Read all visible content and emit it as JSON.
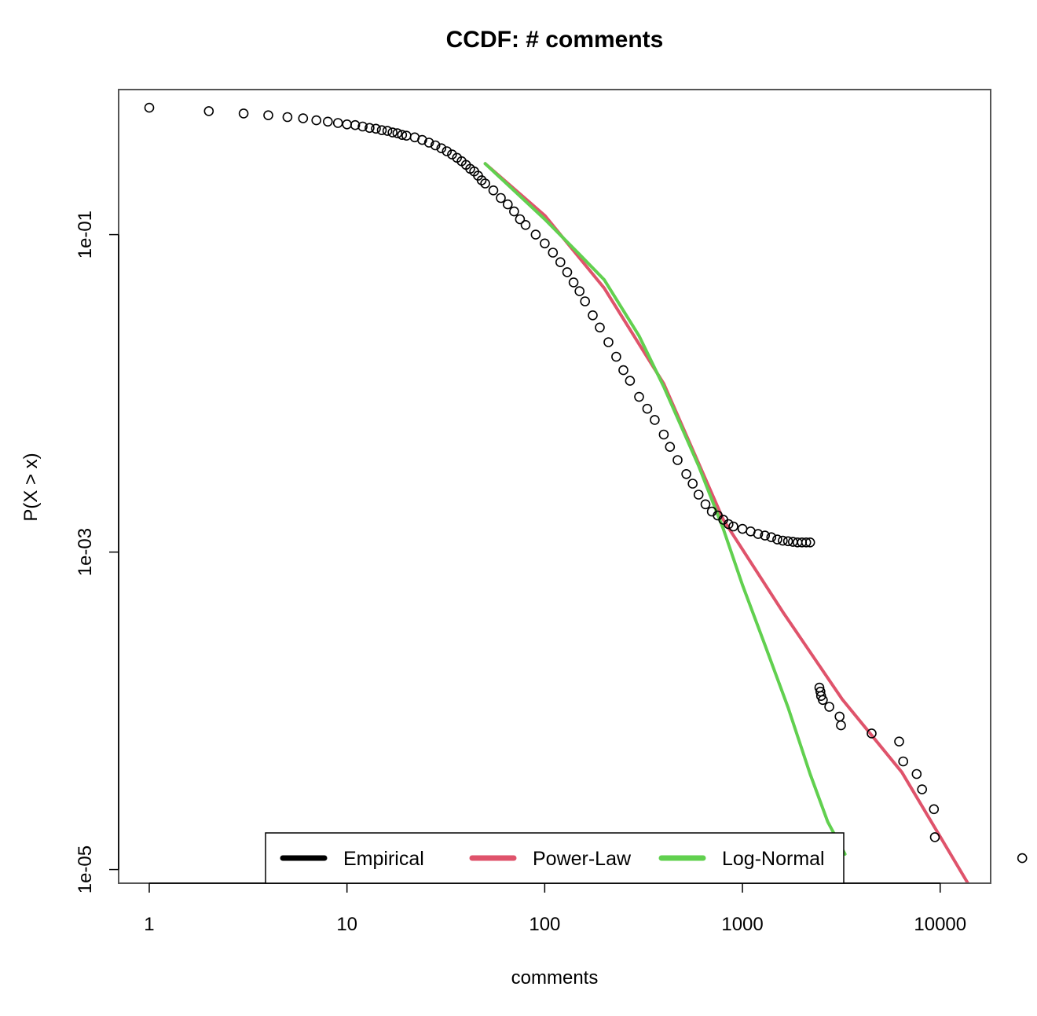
{
  "chart_data": {
    "type": "scatter",
    "title": "CCDF: # comments",
    "xlabel": "comments",
    "ylabel": "P(X > x)",
    "x_scale": "log",
    "y_scale": "log",
    "xlim": [
      0.7,
      18000
    ],
    "ylim": [
      8.2e-06,
      0.82
    ],
    "x_ticks": [
      {
        "value": 1,
        "label": "1"
      },
      {
        "value": 10,
        "label": "10"
      },
      {
        "value": 100,
        "label": "100"
      },
      {
        "value": 1000,
        "label": "1000"
      },
      {
        "value": 10000,
        "label": "10000"
      }
    ],
    "y_ticks": [
      {
        "value": 0.1,
        "label": "1e-01"
      },
      {
        "value": 0.001,
        "label": "1e-03"
      },
      {
        "value": 1e-05,
        "label": "1e-05"
      }
    ],
    "legend": {
      "position": "bottom-center",
      "entries": [
        {
          "label": "Empirical",
          "color": "#000000"
        },
        {
          "label": "Power-Law",
          "color": "#DF536B"
        },
        {
          "label": "Log-Normal",
          "color": "#61D04F"
        }
      ]
    },
    "series": [
      {
        "name": "Empirical",
        "style": "points",
        "color": "#000000",
        "points": [
          [
            1,
            0.63
          ],
          [
            2,
            0.6
          ],
          [
            3,
            0.58
          ],
          [
            4,
            0.565
          ],
          [
            5,
            0.55
          ],
          [
            6,
            0.54
          ],
          [
            7,
            0.525
          ],
          [
            8,
            0.515
          ],
          [
            9,
            0.505
          ],
          [
            10,
            0.495
          ],
          [
            11,
            0.49
          ],
          [
            12,
            0.48
          ],
          [
            13,
            0.47
          ],
          [
            14,
            0.465
          ],
          [
            15,
            0.455
          ],
          [
            16,
            0.45
          ],
          [
            17,
            0.44
          ],
          [
            18,
            0.435
          ],
          [
            19,
            0.425
          ],
          [
            20,
            0.42
          ],
          [
            22,
            0.41
          ],
          [
            24,
            0.395
          ],
          [
            26,
            0.38
          ],
          [
            28,
            0.365
          ],
          [
            30,
            0.35
          ],
          [
            32,
            0.335
          ],
          [
            34,
            0.32
          ],
          [
            36,
            0.305
          ],
          [
            38,
            0.29
          ],
          [
            40,
            0.275
          ],
          [
            42,
            0.26
          ],
          [
            44,
            0.25
          ],
          [
            46,
            0.235
          ],
          [
            48,
            0.22
          ],
          [
            50,
            0.21
          ],
          [
            55,
            0.19
          ],
          [
            60,
            0.17
          ],
          [
            65,
            0.155
          ],
          [
            70,
            0.14
          ],
          [
            75,
            0.125
          ],
          [
            80,
            0.115
          ],
          [
            90,
            0.1
          ],
          [
            100,
            0.088
          ],
          [
            110,
            0.077
          ],
          [
            120,
            0.067
          ],
          [
            130,
            0.058
          ],
          [
            140,
            0.05
          ],
          [
            150,
            0.044
          ],
          [
            160,
            0.038
          ],
          [
            175,
            0.031
          ],
          [
            190,
            0.026
          ],
          [
            210,
            0.021
          ],
          [
            230,
            0.017
          ],
          [
            250,
            0.014
          ],
          [
            270,
            0.012
          ],
          [
            300,
            0.0095
          ],
          [
            330,
            0.008
          ],
          [
            360,
            0.0068
          ],
          [
            400,
            0.0055
          ],
          [
            430,
            0.0046
          ],
          [
            470,
            0.0038
          ],
          [
            520,
            0.0031
          ],
          [
            560,
            0.0027
          ],
          [
            600,
            0.0023
          ],
          [
            650,
            0.002
          ],
          [
            700,
            0.0018
          ],
          [
            750,
            0.0017
          ],
          [
            800,
            0.0016
          ],
          [
            850,
            0.0015
          ],
          [
            900,
            0.00145
          ],
          [
            1000,
            0.0014
          ],
          [
            1100,
            0.00135
          ],
          [
            1200,
            0.0013
          ],
          [
            1300,
            0.00127
          ],
          [
            1400,
            0.00124
          ],
          [
            1500,
            0.0012
          ],
          [
            1600,
            0.00118
          ],
          [
            1700,
            0.00117
          ],
          [
            1800,
            0.00116
          ],
          [
            1900,
            0.00115
          ],
          [
            2000,
            0.00115
          ],
          [
            2100,
            0.00115
          ],
          [
            2200,
            0.00115
          ],
          [
            2450,
            0.00014
          ],
          [
            2480,
            0.000132
          ],
          [
            2500,
            0.000124
          ],
          [
            2550,
            0.000117
          ],
          [
            2750,
            0.000106
          ],
          [
            3100,
            9.2e-05
          ],
          [
            3150,
            8.1e-05
          ],
          [
            4500,
            7.2e-05
          ],
          [
            6200,
            6.4e-05
          ],
          [
            6500,
            4.8e-05
          ],
          [
            7600,
            4e-05
          ],
          [
            8100,
            3.2e-05
          ],
          [
            9300,
            2.4e-05
          ],
          [
            9400,
            1.6e-05
          ],
          [
            26000,
            1.18e-05
          ]
        ]
      },
      {
        "name": "Power-Law",
        "style": "line",
        "color": "#DF536B",
        "points": [
          [
            50,
            0.28
          ],
          [
            100,
            0.132
          ],
          [
            200,
            0.046
          ],
          [
            400,
            0.0115
          ],
          [
            800,
            0.0016
          ],
          [
            1600,
            0.00042
          ],
          [
            3200,
            0.000118
          ],
          [
            6400,
            4.1e-05
          ],
          [
            13800,
            8.2e-06
          ]
        ]
      },
      {
        "name": "Log-Normal",
        "style": "line",
        "color": "#61D04F",
        "points": [
          [
            50,
            0.28
          ],
          [
            100,
            0.125
          ],
          [
            150,
            0.075
          ],
          [
            200,
            0.052
          ],
          [
            300,
            0.023
          ],
          [
            400,
            0.011
          ],
          [
            600,
            0.0035
          ],
          [
            800,
            0.0014
          ],
          [
            1000,
            0.00062
          ],
          [
            1300,
            0.00026
          ],
          [
            1700,
            0.000105
          ],
          [
            2200,
            4e-05
          ],
          [
            2700,
            2e-05
          ],
          [
            3300,
            1.25e-05
          ]
        ]
      }
    ]
  }
}
